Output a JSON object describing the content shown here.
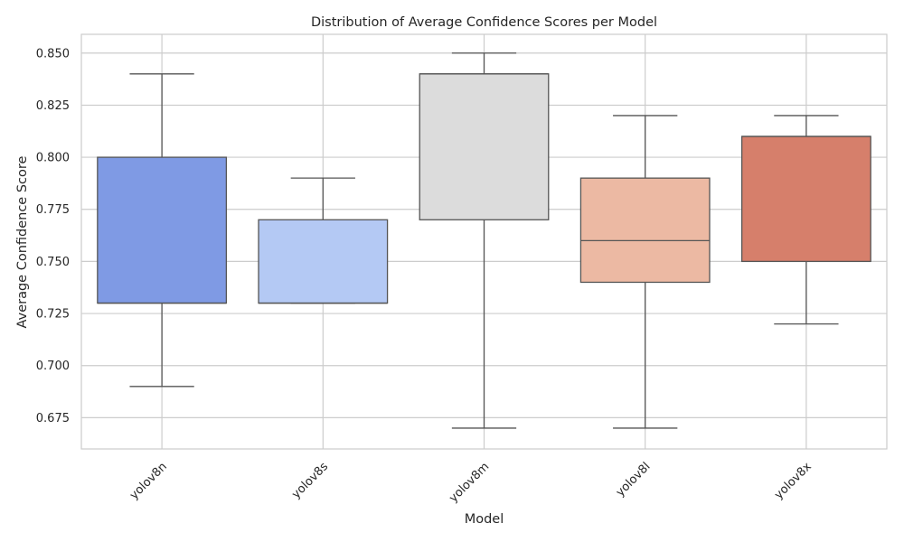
{
  "chart_data": {
    "type": "box",
    "title": "Distribution of Average Confidence Scores per Model",
    "xlabel": "Model",
    "ylabel": "Average Confidence Score",
    "categories": [
      "yolov8n",
      "yolov8s",
      "yolov8m",
      "yolov8l",
      "yolov8x"
    ],
    "ylim": [
      0.66,
      0.859
    ],
    "yticks": [
      0.675,
      0.7,
      0.725,
      0.75,
      0.775,
      0.8,
      0.825,
      0.85
    ],
    "ytick_labels": [
      "0.675",
      "0.700",
      "0.725",
      "0.750",
      "0.775",
      "0.800",
      "0.825",
      "0.850"
    ],
    "grid": true,
    "x_tick_rotation": 45,
    "boxes": [
      {
        "category": "yolov8n",
        "min": 0.69,
        "q1": 0.73,
        "median": 0.73,
        "q3": 0.8,
        "max": 0.84,
        "color": "#7f9ae4"
      },
      {
        "category": "yolov8s",
        "min": 0.73,
        "q1": 0.73,
        "median": 0.73,
        "q3": 0.77,
        "max": 0.79,
        "color": "#b4c9f4"
      },
      {
        "category": "yolov8m",
        "min": 0.67,
        "q1": 0.77,
        "median": 0.84,
        "q3": 0.84,
        "max": 0.85,
        "color": "#dcdcdc"
      },
      {
        "category": "yolov8l",
        "min": 0.67,
        "q1": 0.74,
        "median": 0.76,
        "q3": 0.79,
        "max": 0.82,
        "color": "#ecb9a3"
      },
      {
        "category": "yolov8x",
        "min": 0.72,
        "q1": 0.75,
        "median": 0.81,
        "q3": 0.81,
        "max": 0.82,
        "color": "#d67f6b"
      }
    ],
    "line_color": "#555555",
    "grid_color": "#cccccc",
    "frame_color": "#cccccc"
  }
}
